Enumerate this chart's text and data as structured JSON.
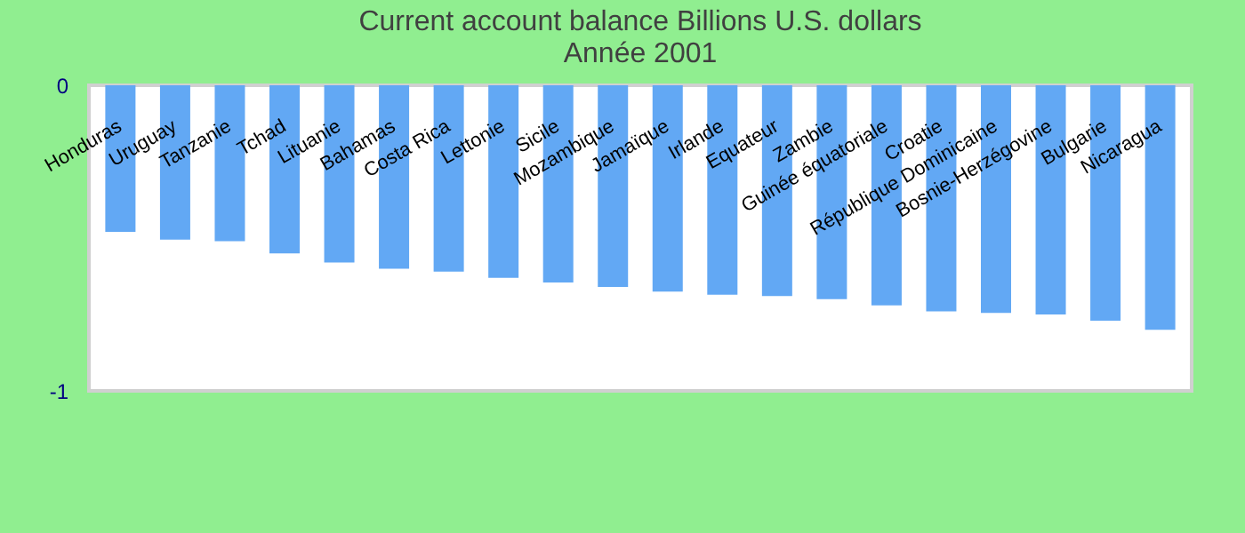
{
  "chart_data": {
    "type": "bar",
    "title": "Current account balance Billions U.S. dollars",
    "subtitle": "Année 2001",
    "categories": [
      "Honduras",
      "Uruguay",
      "Tanzanie",
      "Tchad",
      "Lituanie",
      "Bahamas",
      "Costa Rica",
      "Lettonie",
      "Sicile",
      "Mozambique",
      "Jamaïque",
      "Irlande",
      "Equateur",
      "Zambie",
      "Guinée équatoriale",
      "Croatie",
      "République Dominicaine",
      "Bosnie-Herzégovine",
      "Bulgarie",
      "Nicaragua"
    ],
    "values": [
      -0.48,
      -0.505,
      -0.51,
      -0.55,
      -0.58,
      -0.6,
      -0.61,
      -0.63,
      -0.645,
      -0.66,
      -0.675,
      -0.685,
      -0.69,
      -0.7,
      -0.72,
      -0.74,
      -0.745,
      -0.75,
      -0.77,
      -0.8
    ],
    "color": "#62a8f4",
    "ylim": [
      -1,
      0
    ],
    "yticks": [
      -1,
      0
    ],
    "grid": false
  }
}
